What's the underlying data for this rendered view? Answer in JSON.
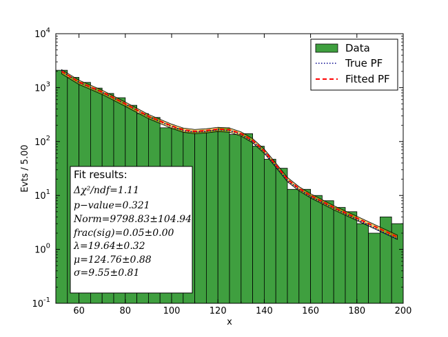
{
  "chart_data": {
    "type": "bar",
    "title": "",
    "xlabel": "x",
    "ylabel": "Evts / 5.00",
    "xlim": [
      50,
      200
    ],
    "ylim": [
      0.1,
      10000
    ],
    "yscale": "log",
    "x_ticks": [
      60,
      80,
      100,
      120,
      140,
      160,
      180,
      200
    ],
    "y_ticks": [
      {
        "base": "10",
        "exp": "-1",
        "value": 0.1
      },
      {
        "base": "10",
        "exp": "0",
        "value": 1
      },
      {
        "base": "10",
        "exp": "1",
        "value": 10
      },
      {
        "base": "10",
        "exp": "2",
        "value": 100
      },
      {
        "base": "10",
        "exp": "3",
        "value": 1000
      },
      {
        "base": "10",
        "exp": "4",
        "value": 10000
      }
    ],
    "bin_width": 5,
    "bin_edges_start": [
      50,
      55,
      60,
      65,
      70,
      75,
      80,
      85,
      90,
      95,
      100,
      105,
      110,
      115,
      120,
      125,
      130,
      135,
      140,
      145,
      150,
      155,
      160,
      165,
      170,
      175,
      180,
      185,
      190,
      195
    ],
    "series": [
      {
        "name": "Data",
        "color": "#3f9f3f",
        "values": [
          2100,
          1550,
          1250,
          980,
          780,
          650,
          470,
          330,
          280,
          180,
          175,
          150,
          150,
          160,
          180,
          135,
          140,
          82,
          47,
          32,
          13,
          13,
          10,
          8,
          6,
          5,
          3,
          2,
          4,
          3
        ]
      },
      {
        "name": "True PF",
        "color": "#00008b",
        "style": "dotted",
        "x": [
          52.5,
          60,
          70,
          80,
          90,
          100,
          105,
          110,
          115,
          120,
          125,
          130,
          135,
          140,
          145,
          150,
          155,
          160,
          170,
          180,
          190,
          197.5
        ],
        "y": [
          2050,
          1250,
          820,
          500,
          290,
          190,
          160,
          150,
          155,
          165,
          160,
          135,
          100,
          65,
          35,
          19,
          13,
          9.5,
          5.8,
          3.6,
          2.2,
          1.55
        ]
      },
      {
        "name": "Fitted PF",
        "color": "#ff0000",
        "style": "dashed",
        "x": [
          52.5,
          60,
          70,
          80,
          90,
          100,
          105,
          110,
          115,
          120,
          125,
          130,
          135,
          140,
          145,
          150,
          155,
          160,
          170,
          180,
          190,
          197.5
        ],
        "y": [
          2000,
          1270,
          830,
          500,
          295,
          195,
          165,
          155,
          160,
          170,
          165,
          140,
          105,
          67,
          37,
          20,
          13.5,
          10,
          6.0,
          3.8,
          2.4,
          1.7
        ]
      }
    ],
    "legend_position": "top-right",
    "grid": false
  },
  "fit_box": {
    "title": "Fit results:",
    "lines": [
      "Δχ²/ndf=1.11",
      "p−value=0.321",
      "Norm=9798.83±104.94",
      "frac(sig)=0.05±0.00",
      "λ=19.64±0.32",
      "μ=124.76±0.88",
      "σ=9.55±0.81"
    ]
  }
}
